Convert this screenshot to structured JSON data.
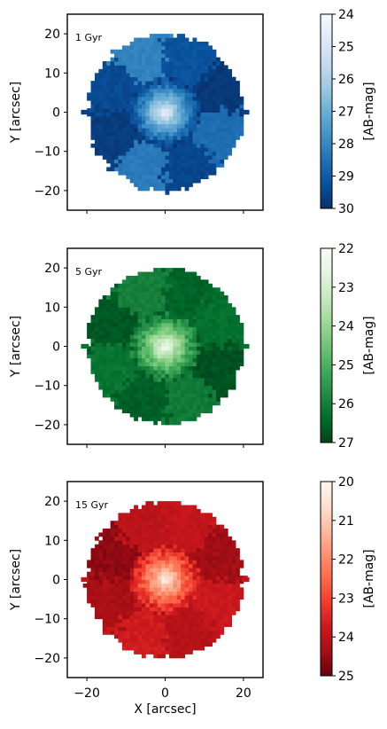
{
  "chart_data": [
    {
      "type": "heatmap",
      "panel_label": "1 Gyr",
      "xlabel": "X [arcsec]",
      "ylabel": "Y [arcsec]",
      "xlim": [
        -25,
        25
      ],
      "ylim": [
        -25,
        25
      ],
      "xticks": [
        -20,
        0,
        20
      ],
      "yticks": [
        -20,
        -10,
        0,
        10,
        20
      ],
      "xtick_labels_visible": false,
      "colormap": "Blues_r",
      "colorbar": {
        "label": "[AB-mag]",
        "range": [
          24,
          30
        ],
        "ticks": [
          24,
          25,
          26,
          27,
          28,
          29,
          30
        ],
        "colors": [
          "#08306b",
          "#08519c",
          "#2171b5",
          "#4292c6",
          "#6baed6",
          "#9ecae1",
          "#c6dbef",
          "#deebf7",
          "#f7fbff"
        ]
      },
      "map": {
        "shape": "disk",
        "radius": 20,
        "center_value": 24.3,
        "edge_value": 29.6,
        "region_values": [
          29.7,
          28.3,
          29.5,
          28.6,
          29.8,
          29.2,
          28.1,
          29.4
        ]
      }
    },
    {
      "type": "heatmap",
      "panel_label": "5 Gyr",
      "xlabel": "X [arcsec]",
      "ylabel": "Y [arcsec]",
      "xlim": [
        -25,
        25
      ],
      "ylim": [
        -25,
        25
      ],
      "xticks": [
        -20,
        0,
        20
      ],
      "yticks": [
        -20,
        -10,
        0,
        10,
        20
      ],
      "xtick_labels_visible": false,
      "colormap": "Greens_r",
      "colorbar": {
        "label": "[AB-mag]",
        "range": [
          22,
          27
        ],
        "ticks": [
          22,
          23,
          24,
          25,
          26,
          27
        ],
        "colors": [
          "#00441b",
          "#006d2c",
          "#238b45",
          "#41ab5d",
          "#74c476",
          "#a1d99b",
          "#c7e9c0",
          "#e5f5e0",
          "#f7fcf5"
        ]
      },
      "map": {
        "shape": "disk",
        "radius": 20,
        "center_value": 22.1,
        "edge_value": 26.3,
        "region_values": [
          26.2,
          26.6,
          26.1,
          26.8,
          26.3,
          26.5,
          26.0,
          26.7
        ]
      }
    },
    {
      "type": "heatmap",
      "panel_label": "15 Gyr",
      "xlabel": "X [arcsec]",
      "ylabel": "Y [arcsec]",
      "xlim": [
        -25,
        25
      ],
      "ylim": [
        -25,
        25
      ],
      "xticks": [
        -20,
        0,
        20
      ],
      "yticks": [
        -20,
        -10,
        0,
        10,
        20
      ],
      "xtick_labels_visible": true,
      "colormap": "Reds_r",
      "colorbar": {
        "label": "[AB-mag]",
        "range": [
          20,
          25
        ],
        "ticks": [
          20,
          21,
          22,
          23,
          24,
          25
        ],
        "colors": [
          "#67000d",
          "#a50f15",
          "#cb181d",
          "#ef3b2c",
          "#fb6a4a",
          "#fc9272",
          "#fcbba1",
          "#fee0d2",
          "#fff5f0"
        ]
      },
      "map": {
        "shape": "disk",
        "radius": 20,
        "center_value": 20.1,
        "edge_value": 23.9,
        "region_values": [
          24.3,
          23.7,
          24.1,
          23.8,
          24.4,
          23.9,
          24.0,
          24.6
        ]
      }
    }
  ]
}
